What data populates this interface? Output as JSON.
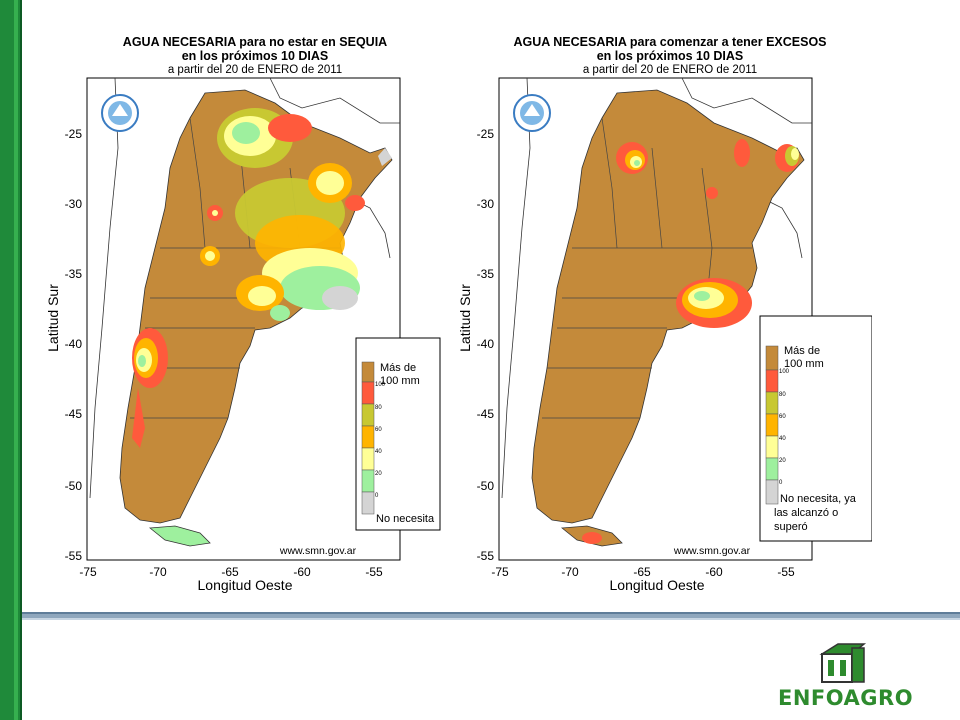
{
  "left_map": {
    "title_line1": "AGUA NECESARIA para  no estar  en SEQUIA",
    "title_line2": "en los próximos 10 DIAS",
    "title_line3": "a  partir  del  20  de  ENERO  de  2011",
    "legend_top": "Más de",
    "legend_top2": "100 mm",
    "legend_bottom": "No necesita",
    "url": "www.smn.gov.ar"
  },
  "right_map": {
    "title_line1": "AGUA NECESARIA para comenzar a tener EXCESOS",
    "title_line2": "en los próximos 10 DIAS",
    "title_line3": "a  partir  del  20  de  ENERO  de  2011",
    "legend_top": "Más de",
    "legend_top2": "100 mm",
    "legend_bottom1": "No necesita, ya",
    "legend_bottom2": "las alcanzó o",
    "legend_bottom3": "superó",
    "url": "www.smn.gov.ar"
  },
  "axes": {
    "ylabel": "Latitud Sur",
    "xlabel": "Longitud Oeste",
    "lat_ticks": [
      "-25",
      "-30",
      "-35",
      "-40",
      "-45",
      "-50",
      "-55"
    ],
    "lon_ticks": [
      "-75",
      "-70",
      "-65",
      "-60",
      "-55"
    ]
  },
  "legend_scale": [
    "100",
    "80",
    "60",
    "40",
    "20",
    "0"
  ],
  "colors": {
    "brown": "#c48a3a",
    "red": "#ff5a3c",
    "orange": "#ffb400",
    "olive": "#c8c832",
    "yellow": "#ffff96",
    "green": "#9ef09e",
    "gray": "#d4d4d4"
  },
  "brand": {
    "name": "ENFOAGRO"
  }
}
